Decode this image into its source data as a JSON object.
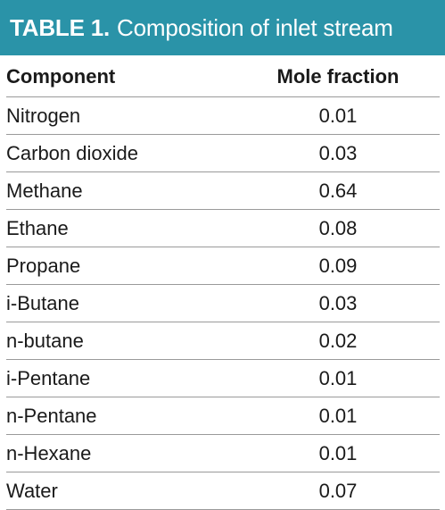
{
  "caption": {
    "label": "TABLE 1.",
    "title": "Composition of inlet stream"
  },
  "columns": {
    "component": "Component",
    "mole_fraction": "Mole fraction"
  },
  "rows": [
    {
      "component": "Nitrogen",
      "mole_fraction": "0.01"
    },
    {
      "component": "Carbon dioxide",
      "mole_fraction": "0.03"
    },
    {
      "component": "Methane",
      "mole_fraction": "0.64"
    },
    {
      "component": "Ethane",
      "mole_fraction": "0.08"
    },
    {
      "component": "Propane",
      "mole_fraction": "0.09"
    },
    {
      "component": "i-Butane",
      "mole_fraction": "0.03"
    },
    {
      "component": "n-butane",
      "mole_fraction": "0.02"
    },
    {
      "component": "i-Pentane",
      "mole_fraction": "0.01"
    },
    {
      "component": "n-Pentane",
      "mole_fraction": "0.01"
    },
    {
      "component": "n-Hexane",
      "mole_fraction": "0.01"
    },
    {
      "component": "Water",
      "mole_fraction": "0.07"
    }
  ],
  "colors": {
    "caption_background": "#2a93a8",
    "caption_text": "#ffffff",
    "rule": "#9a9a9a",
    "text": "#1a1a1a"
  }
}
